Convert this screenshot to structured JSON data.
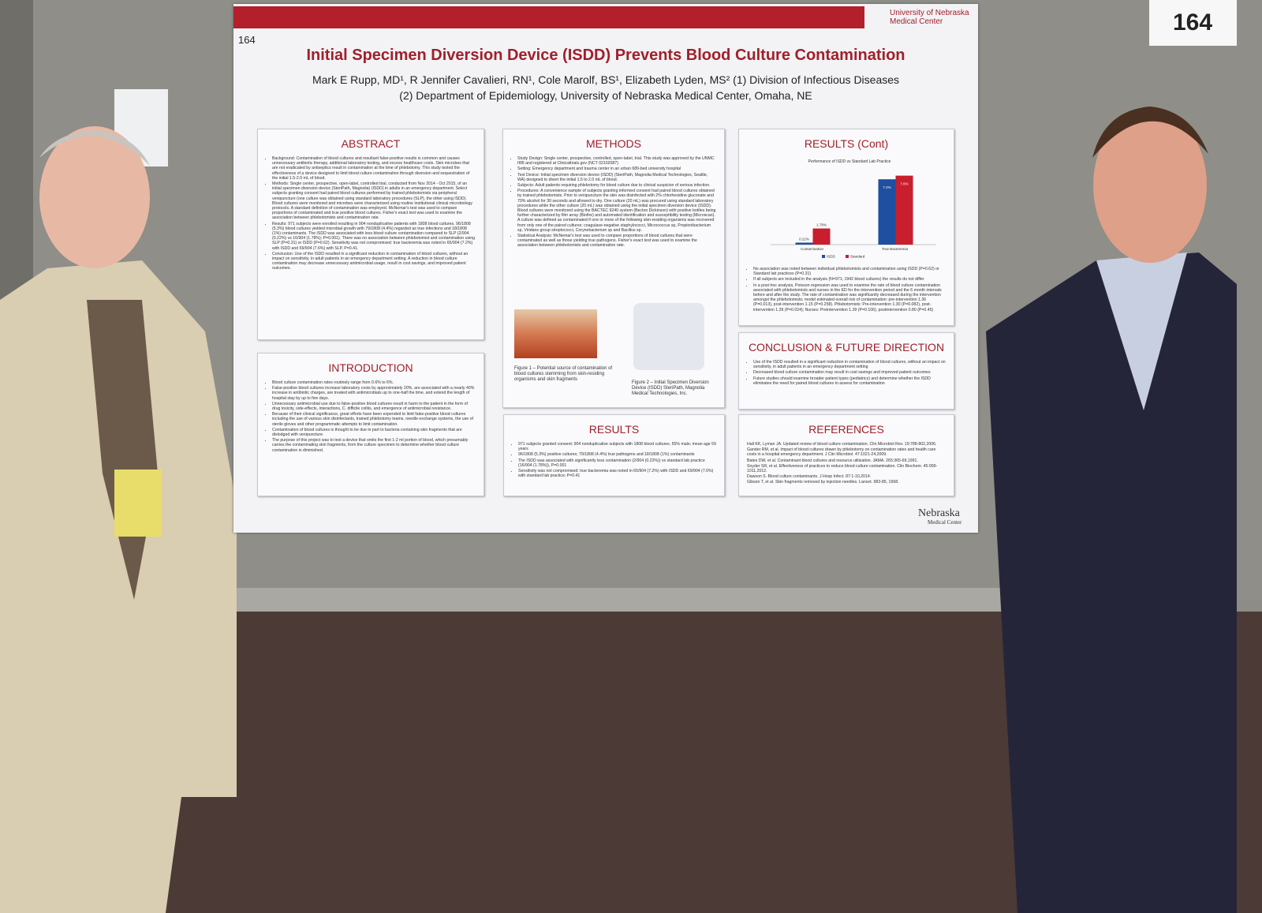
{
  "sign": "164",
  "poster": {
    "number": "164",
    "logo": "University of Nebraska Medical Center",
    "title": "Initial Specimen Diversion Device (ISDD) Prevents Blood Culture Contamination",
    "authors": [
      "Mark E Rupp, MD¹, R Jennifer Cavalieri, RN¹,  Cole Marolf, BS¹, Elizabeth Lyden, MS² (1) Division of Infectious Diseases",
      "(2) Department of Epidemiology, University of Nebraska Medical Center, Omaha, NE"
    ],
    "abstract": {
      "heading": "ABSTRACT",
      "items": [
        "Background: Contamination of blood cultures and resultant false-positive results is common and causes unnecessary antibiotic therapy, additional laboratory testing, and excess healthcare costs. Skin microbes that are not eradicated by antiseptics result in contamination at the time of phlebotomy. This study tested the effectiveness of a device designed to limit blood culture contamination through diversion and sequestration of the initial 1.5-2.0 mL of blood.",
        "Methods: Single center, prospective, open-label, controlled trial, conducted from Nov 2014 - Oct 2015, of an initial specimen diversion device (SteriPath, Magnolia) (ISDD) in adults in an emergency department. Select subjects granting consent had paired blood cultures performed by trained phlebotomists via peripheral venipuncture (one culture was obtained using standard laboratory procedures (SLP), the other using ISDD). Blood cultures were monitored and microbes were characterized using routine institutional clinical microbiology protocols. A standard definition of contamination was employed. McNemar's test was used to compare proportions of contaminated and true positive blood cultures. Fisher's exact test was used to examine the association between phlebotomists and contamination rate.",
        "Results: 971 subjects were enrolled resulting in 904 nonduplicative patients with 1808 blood cultures. 96/1808 (5.3%) blood cultures yielded microbial growth with 79/1808 (4.4%) regarded as true infections and 18/1808 (1%) contaminants. The ISDD was associated with less blood culture contamination compared to SLP (2/904 (0.22%) vs 16/904 (1.78%); P=0.001). There was no association between phlebotomist and contamination using SLP (P=0.31) or ISDD (P=0.62). Sensitivity was not compromised: true bacteremia was noted in 65/904 (7.2%) with ISDD and 69/904 (7.6%) with SLP, P=0.41.",
        "Conclusion: Use of the ISDD resulted in a significant reduction in contamination of blood cultures, without an impact on sensitivity, in adult patients in an emergency department setting. A reduction in blood culture contamination may decrease unnecessary antimicrobial usage, result in cost savings, and improved patient outcomes."
      ]
    },
    "introduction": {
      "heading": "INTRODUCTION",
      "items": [
        "Blood culture contamination rates routinely range from 0.6% to 6%.",
        "False-positive blood cultures increase laboratory costs by approximately 20%, are associated with a nearly 40% increase in antibiotic charges, are treated with antimicrobials up to one-half the time, and extend the length of hospital stay by up to five days.",
        "Unnecessary antimicrobial use due to false-positive blood cultures result in harm to the patient in the form of drug toxicity, side-effects, interactions, C. difficile colitis, and emergence of antimicrobial resistance.",
        "Because of their clinical significance, great efforts have been expended to limit false-positive blood cultures including the use of various skin disinfectants, trained phlebotomy teams, needle exchange systems, the use of sterile gloves and other programmatic attempts to limit contamination.",
        "Contamination of blood cultures is thought to be due in part to bacteria containing skin fragments that are dislodged with venipuncture.",
        "The purpose of this project was to test a device that omits the first 1-2 ml portion of blood, which presumably carries the contaminating skin fragments, from the culture specimen to determine whether blood culture contamination is diminished."
      ]
    },
    "methods": {
      "heading": "METHODS",
      "items": [
        "Study Design: Single center, prospective, controlled, open-label, trial. This study was approved by the UNMC IRB and registered at Clinicaltrials.gov (NCT 02102087)",
        "Setting: Emergency department and trauma center in an urban 689-bed university hospital",
        "Test Device: Initial specimen diversion device (ISDD) (SteriPath, Magnolia Medical Technologies, Seattle, WA) designed to divert the initial 1.5 to 2.0 mL of blood.",
        "Subjects: Adult patients requiring phlebotomy for blood culture due to clinical suspicion of serious infection.",
        "Procedures: A convenience sample of subjects granting informed consent had paired blood cultures obtained by trained phlebotomists. Prior to venipuncture the skin was disinfected with 2% chlorhexidine gluconate and 70% alcohol for 30 seconds and allowed to dry. One culture (20 mL) was procured using standard laboratory procedures while the other culture (20 mL) was obtained using the initial specimen diversion device (ISDD). Blood cultures were monitored using the BACTEC 9240 system (Becton Dickinson) with positive bottles being further characterized by film array (Biofire) and automated identification and susceptibility testing (Microscan). A culture was defined as contaminated if one or more of the following skin-residing organisms was recovered from only one of the paired cultures: coagulase-negative staphylococci, Micrococcus sp, Propionibacterium sp, Viridans group streptococci, Corynebacterium sp and Bacillus sp.",
        "Statistical Analysis: McNemar's test was used to compare proportions of blood cultures that were contaminated as well as those yielding true pathogens. Fisher's exact test was used to examine the association between phlebotomists and contamination rate."
      ],
      "figure1": "Figure 1 – Potential source of contamination of blood cultures stemming from skin-residing organisms and skin fragments",
      "figure2": "Figure 2 – Initial Specimen Diversion Device (ISDD) SteriPath, Magnolia Medical Technologies, Inc."
    },
    "results": {
      "heading": "RESULTS",
      "items": [
        "971 subjects granted consent; 904 nonduplicative subjects with 1808 blood cultures. 55% male; mean age 59 years",
        "96/1808 (5.3%) positive cultures; 79/1808 (4.4%) true pathogens and 18/1808 (1%) contaminants",
        "The ISDD was associated with significantly less contamination (2/904 (0.22%)) vs standard lab practice (16/904 (1.78%)), P=0.001",
        "Sensitivity was not compromised: true bacteremia was noted in 65/904 (7.2%) with ISDD and 69/904 (7.6%) with standard lab practice; P=0.41"
      ]
    },
    "results_cont": {
      "heading": "RESULTS (Cont)",
      "items": [
        "No association was noted between individual phlebotomists and contamination using ISDD (P=0.62) or Standard lab practices (P=0.31)",
        "If all subjects are included in the analysis (N=971; 1942 blood cultures) the results do not differ",
        "In a post-hoc analysis, Poisson regression was used to examine the rate of blood culture contamination associated with phlebotomists and nurses in the ED for the intervention period and the 6 month intervals before and after the study. The rate of contamination was significantly decreased during the intervention amongst the phlebotomists; model estimated overall risk of contamination: pre-intervention 1.36 (P=0.013), post-intervention 1.15 (P=0.258). Phlebotomists: Pre-intervention 1.30 (P=0.082), post-intervention 1.39 (P=0.024); Nurses: Preintervention 1.39 (P=0.106), postintervention 0.80 (P=0.45)"
      ]
    },
    "conclusion": {
      "heading": "CONCLUSION & FUTURE DIRECTION",
      "items": [
        "Use of the ISDD resulted in a significant reduction in contamination of blood cultures, without an impact on sensitivity, in adult patients in an emergency department setting",
        "Decreased blood culture contamination may result in cost savings and improved patient outcomes",
        "Future studies should examine broader patient types (pediatrics) and determine whether the ISDD eliminates the need for paired blood cultures to assess for contamination"
      ]
    },
    "references": {
      "heading": "REFERENCES",
      "items": [
        "Hall KK, Lyman JA. Updated review of blood culture contamination. Clin Microbiol Rev. 19:788-802,2006.",
        "Gander RM, et al. Impact of blood cultures drawn by phlebotomy on contamination rates and health care costs in a hospital emergency department. J Clin Microbiol. 47:1021-24,2009.",
        "Bates DW, et al. Contaminant blood cultures and resource utilization. JAMA. 265:365-69,1991.",
        "Snyder SR, et al. Effectiveness of practices to reduce blood culture contamination. Clin Biochem. 45:999-1011,2012.",
        "Dawson S. Blood culture contaminants. J Hosp Infect. 87:1-10,2014.",
        "Gibson T, et al. Skin fragments removed by injection needles. Lancet. 983-85, 1968."
      ]
    },
    "footer_logo": [
      "Nebraska",
      "Medical Center"
    ]
  },
  "chart_data": {
    "type": "bar",
    "title": "Performance of ISDD vs Standard Lab Practice",
    "categories": [
      "Contamination",
      "True Bacteremia"
    ],
    "series": [
      {
        "name": "ISDD",
        "color": "#1f4fa0",
        "values": [
          0.22,
          7.2
        ],
        "value_labels": [
          "0.22%",
          "7.2%"
        ]
      },
      {
        "name": "Standard",
        "color": "#c81e2e",
        "values": [
          1.78,
          7.6
        ],
        "value_labels": [
          "1.78%",
          "7.6%"
        ]
      }
    ],
    "ylim": [
      0,
      8
    ],
    "legend": "bottom"
  }
}
